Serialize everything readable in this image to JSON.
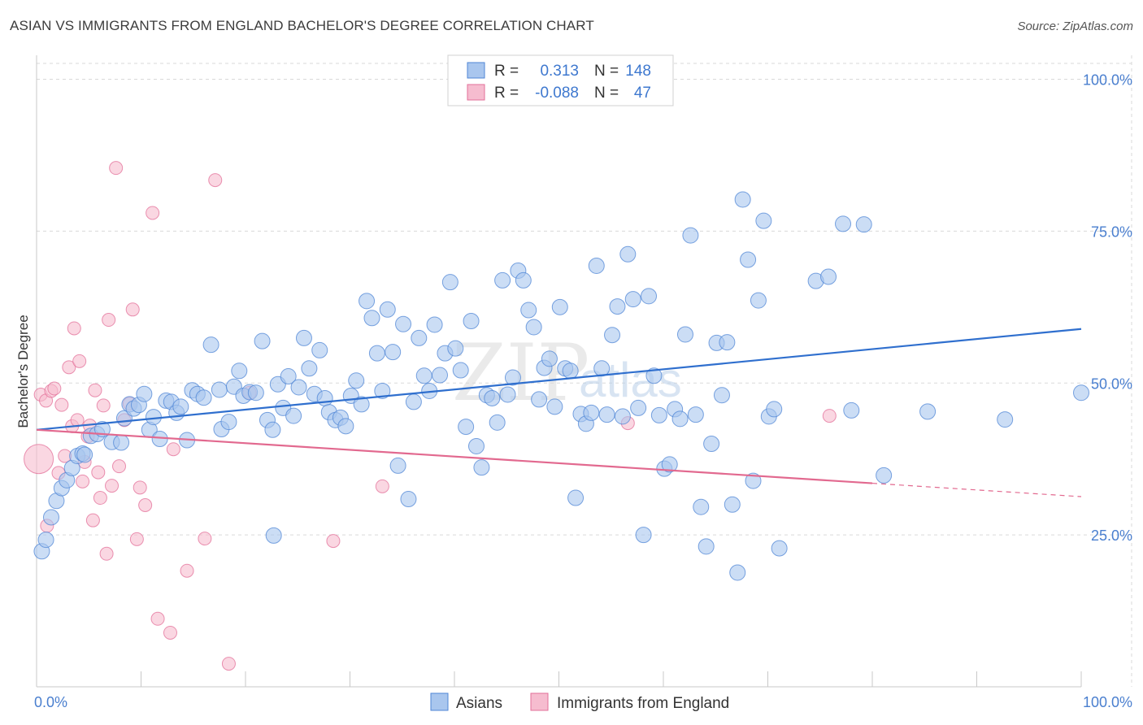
{
  "title": "ASIAN VS IMMIGRANTS FROM ENGLAND BACHELOR'S DEGREE CORRELATION CHART",
  "source": "Source: ZipAtlas.com",
  "colors": {
    "asian": "#4f86d6",
    "asian_fill": "#a9c6ee",
    "england": "#e36f98",
    "england_fill": "#f6bccf",
    "grid": "#d9d9d9",
    "axis_text": "#4a7fcf"
  },
  "legend": {
    "rows": [
      {
        "r_label": "R =",
        "r_value": "0.313",
        "n_label": "N =",
        "n_value": "148"
      },
      {
        "r_label": "R =",
        "r_value": "-0.088",
        "n_label": "N =",
        "n_value": "47"
      }
    ]
  },
  "bottom_legend": [
    "Asians",
    "Immigrants from England"
  ],
  "watermark": {
    "zip": "ZIP",
    "atlas": "atlas"
  },
  "chart_data": {
    "type": "scatter",
    "title": "ASIAN VS IMMIGRANTS FROM ENGLAND BACHELOR'S DEGREE CORRELATION CHART",
    "xlabel": "",
    "ylabel": "Bachelor's Degree",
    "xlim": [
      0,
      100
    ],
    "ylim": [
      0,
      105
    ],
    "x_tick_labels": [
      "0.0%",
      "100.0%"
    ],
    "y_ticks": [
      25,
      50,
      75,
      100
    ],
    "y_tick_labels": [
      "25.0%",
      "50.0%",
      "75.0%",
      "100.0%"
    ],
    "grid": true,
    "legend_position": "top-center",
    "series": [
      {
        "name": "Asians",
        "r": 0.313,
        "n": 148,
        "trend": {
          "x": [
            0,
            100
          ],
          "y": [
            42.3,
            58.9
          ]
        },
        "points": [
          [
            0.5,
            22.3
          ],
          [
            0.9,
            24.2
          ],
          [
            1.4,
            27.9
          ],
          [
            1.9,
            30.6
          ],
          [
            2.4,
            32.7
          ],
          [
            2.9,
            34.0
          ],
          [
            3.4,
            36.0
          ],
          [
            3.9,
            38.0
          ],
          [
            4.4,
            38.4
          ],
          [
            4.6,
            38.2
          ],
          [
            5.2,
            41.3
          ],
          [
            5.8,
            41.6
          ],
          [
            6.3,
            42.4
          ],
          [
            7.2,
            40.3
          ],
          [
            8.1,
            40.2
          ],
          [
            8.4,
            44.2
          ],
          [
            8.9,
            46.5
          ],
          [
            9.3,
            45.8
          ],
          [
            9.8,
            46.4
          ],
          [
            10.3,
            48.2
          ],
          [
            10.8,
            42.3
          ],
          [
            11.2,
            44.4
          ],
          [
            11.8,
            40.8
          ],
          [
            12.4,
            47.1
          ],
          [
            12.9,
            46.9
          ],
          [
            13.4,
            45.1
          ],
          [
            13.8,
            46.1
          ],
          [
            14.4,
            40.6
          ],
          [
            14.9,
            48.8
          ],
          [
            15.4,
            48.2
          ],
          [
            16.0,
            47.6
          ],
          [
            16.7,
            56.3
          ],
          [
            17.5,
            48.9
          ],
          [
            17.7,
            42.4
          ],
          [
            18.4,
            43.6
          ],
          [
            18.9,
            49.4
          ],
          [
            19.4,
            52.0
          ],
          [
            19.8,
            47.9
          ],
          [
            20.4,
            48.5
          ],
          [
            21.0,
            48.4
          ],
          [
            21.6,
            56.9
          ],
          [
            22.1,
            43.9
          ],
          [
            22.6,
            42.3
          ],
          [
            23.1,
            49.8
          ],
          [
            23.6,
            45.9
          ],
          [
            24.1,
            51.1
          ],
          [
            24.6,
            44.6
          ],
          [
            25.1,
            49.3
          ],
          [
            25.6,
            57.4
          ],
          [
            26.1,
            52.4
          ],
          [
            26.6,
            48.2
          ],
          [
            27.1,
            55.4
          ],
          [
            27.6,
            47.5
          ],
          [
            28.0,
            45.2
          ],
          [
            28.6,
            43.9
          ],
          [
            29.1,
            44.3
          ],
          [
            29.6,
            42.9
          ],
          [
            30.1,
            47.9
          ],
          [
            30.6,
            50.4
          ],
          [
            31.1,
            46.5
          ],
          [
            31.6,
            63.5
          ],
          [
            32.1,
            60.7
          ],
          [
            32.6,
            54.9
          ],
          [
            33.1,
            48.7
          ],
          [
            33.6,
            62.1
          ],
          [
            34.1,
            55.1
          ],
          [
            34.6,
            36.4
          ],
          [
            35.1,
            59.7
          ],
          [
            35.6,
            30.9
          ],
          [
            36.1,
            46.9
          ],
          [
            36.6,
            57.4
          ],
          [
            37.1,
            51.2
          ],
          [
            37.6,
            48.7
          ],
          [
            38.1,
            59.6
          ],
          [
            38.6,
            51.3
          ],
          [
            39.1,
            54.9
          ],
          [
            39.6,
            66.6
          ],
          [
            40.1,
            55.7
          ],
          [
            40.6,
            52.1
          ],
          [
            41.1,
            42.8
          ],
          [
            41.6,
            60.2
          ],
          [
            42.1,
            39.6
          ],
          [
            42.6,
            36.1
          ],
          [
            43.1,
            48.0
          ],
          [
            43.6,
            47.5
          ],
          [
            44.1,
            43.5
          ],
          [
            44.6,
            66.9
          ],
          [
            45.1,
            48.1
          ],
          [
            45.6,
            50.9
          ],
          [
            46.1,
            68.5
          ],
          [
            46.6,
            66.9
          ],
          [
            47.1,
            62.0
          ],
          [
            47.6,
            59.2
          ],
          [
            48.1,
            47.3
          ],
          [
            48.6,
            52.5
          ],
          [
            49.1,
            54.0
          ],
          [
            49.6,
            46.1
          ],
          [
            50.1,
            62.5
          ],
          [
            50.6,
            52.4
          ],
          [
            51.1,
            52.0
          ],
          [
            51.6,
            31.1
          ],
          [
            52.1,
            44.9
          ],
          [
            52.6,
            43.3
          ],
          [
            53.1,
            45.1
          ],
          [
            53.6,
            69.3
          ],
          [
            54.1,
            52.4
          ],
          [
            54.6,
            44.8
          ],
          [
            55.1,
            57.9
          ],
          [
            55.6,
            62.6
          ],
          [
            56.1,
            44.5
          ],
          [
            56.6,
            71.2
          ],
          [
            57.1,
            63.8
          ],
          [
            57.6,
            45.9
          ],
          [
            58.1,
            25.0
          ],
          [
            58.6,
            64.3
          ],
          [
            59.1,
            51.2
          ],
          [
            59.6,
            44.7
          ],
          [
            60.1,
            35.9
          ],
          [
            60.6,
            36.6
          ],
          [
            61.1,
            45.7
          ],
          [
            61.6,
            44.1
          ],
          [
            62.1,
            58.0
          ],
          [
            62.6,
            74.3
          ],
          [
            63.1,
            44.8
          ],
          [
            63.6,
            29.6
          ],
          [
            64.1,
            23.1
          ],
          [
            64.6,
            40.0
          ],
          [
            65.1,
            56.6
          ],
          [
            65.6,
            48.0
          ],
          [
            66.1,
            56.7
          ],
          [
            66.6,
            30.0
          ],
          [
            67.1,
            18.8
          ],
          [
            67.6,
            80.2
          ],
          [
            68.1,
            70.3
          ],
          [
            68.6,
            33.9
          ],
          [
            69.1,
            63.6
          ],
          [
            69.6,
            76.7
          ],
          [
            70.1,
            44.5
          ],
          [
            70.6,
            45.7
          ],
          [
            71.1,
            22.8
          ],
          [
            74.6,
            66.8
          ],
          [
            75.8,
            67.5
          ],
          [
            77.2,
            76.2
          ],
          [
            78.0,
            45.5
          ],
          [
            79.2,
            76.1
          ],
          [
            81.1,
            34.8
          ],
          [
            85.3,
            45.3
          ],
          [
            92.7,
            44.0
          ],
          [
            100.0,
            48.4
          ],
          [
            22.7,
            24.9
          ]
        ]
      },
      {
        "name": "Immigrants from England",
        "r": -0.088,
        "n": 47,
        "trend": {
          "x": [
            0,
            100
          ],
          "y": [
            42.3,
            31.3
          ]
        },
        "points": [
          [
            0.4,
            48.1
          ],
          [
            0.9,
            47.1
          ],
          [
            1.4,
            48.7
          ],
          [
            1.7,
            49.1
          ],
          [
            2.1,
            35.2
          ],
          [
            2.4,
            46.4
          ],
          [
            2.7,
            38.0
          ],
          [
            3.1,
            52.6
          ],
          [
            3.4,
            42.9
          ],
          [
            3.6,
            59.0
          ],
          [
            3.9,
            43.9
          ],
          [
            4.1,
            53.6
          ],
          [
            4.4,
            33.8
          ],
          [
            4.6,
            37.0
          ],
          [
            4.9,
            41.2
          ],
          [
            5.1,
            43.0
          ],
          [
            5.4,
            27.4
          ],
          [
            5.6,
            48.8
          ],
          [
            5.9,
            35.3
          ],
          [
            6.1,
            31.1
          ],
          [
            6.4,
            46.3
          ],
          [
            6.7,
            21.9
          ],
          [
            6.9,
            60.4
          ],
          [
            7.2,
            33.1
          ],
          [
            7.6,
            85.4
          ],
          [
            7.9,
            36.3
          ],
          [
            8.4,
            43.9
          ],
          [
            8.9,
            46.6
          ],
          [
            9.2,
            62.1
          ],
          [
            9.6,
            24.3
          ],
          [
            9.9,
            32.8
          ],
          [
            10.4,
            29.9
          ],
          [
            11.1,
            78.0
          ],
          [
            11.6,
            11.2
          ],
          [
            12.8,
            8.9
          ],
          [
            13.1,
            39.1
          ],
          [
            14.4,
            19.1
          ],
          [
            16.1,
            24.4
          ],
          [
            17.1,
            83.4
          ],
          [
            18.4,
            3.8
          ],
          [
            20.4,
            48.4
          ],
          [
            28.4,
            24.0
          ],
          [
            33.1,
            33.0
          ],
          [
            56.6,
            43.4
          ],
          [
            75.9,
            44.6
          ],
          [
            1.0,
            26.5
          ],
          [
            0.2,
            37.5
          ]
        ]
      }
    ]
  }
}
